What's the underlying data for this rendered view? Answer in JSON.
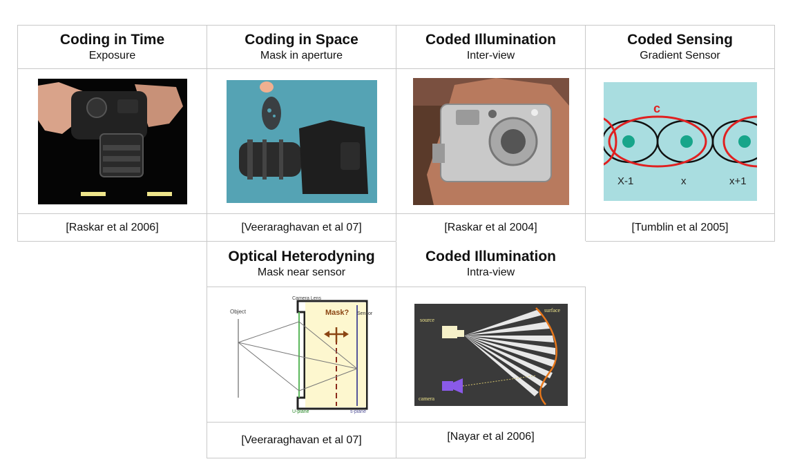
{
  "columns": [
    {
      "title": "Coding in Time",
      "subtitle": "Exposure",
      "citation": "[Raskar et al 2006]",
      "image": "camera-in-hands-photo"
    },
    {
      "title": "Coding in Space",
      "subtitle": "Mask in aperture",
      "citation": "[Veeraraghavan et al 07]",
      "image": "camera-with-aperture-mask-photo"
    },
    {
      "title": "Coded Illumination",
      "subtitle": "Inter-view",
      "citation": "[Raskar et al 2004]",
      "image": "compact-camera-in-hand-photo"
    },
    {
      "title": "Coded Sensing",
      "subtitle": "Gradient Sensor",
      "citation": "[Tumblin et al 2005]",
      "image": "gradient-sensor-diagram",
      "diagram_labels": {
        "c": "c",
        "left": "X-1",
        "mid": "x",
        "right": "x+1"
      }
    }
  ],
  "second_row": [
    {
      "title": "Optical Heterodyning",
      "subtitle": "Mask near sensor",
      "citation": "[Veeraraghavan et al 07]",
      "image": "heterodyne-optics-diagram",
      "diagram_labels": {
        "object": "Object",
        "camera_lens": "Camera Lens",
        "mask": "Mask?",
        "sensor": "Sensor",
        "uplane": "U-plane",
        "splane": "s-plane"
      }
    },
    {
      "title": "Coded Illumination",
      "subtitle": "Intra-view",
      "citation": "[Nayar et al 2006]",
      "image": "projector-stripes-diagram",
      "diagram_labels": {
        "source": "source",
        "surface": "surface",
        "camera": "camera"
      }
    }
  ]
}
